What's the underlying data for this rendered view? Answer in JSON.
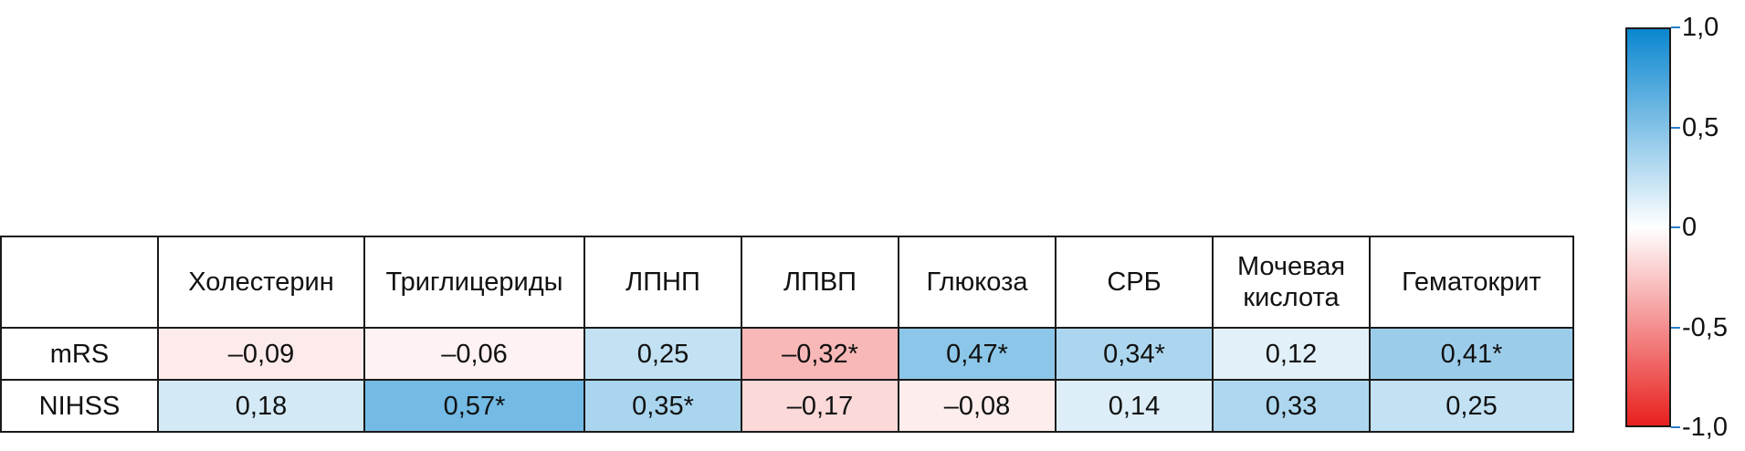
{
  "chart_data": {
    "type": "heatmap",
    "columns": [
      "Холестерин",
      "Триглицериды",
      "ЛПНП",
      "ЛПВП",
      "Глюкоза",
      "СРБ",
      "Мочевая\nкислота",
      "Гематокрит"
    ],
    "rows": [
      {
        "label": "mRS",
        "values": [
          -0.09,
          -0.06,
          0.25,
          -0.32,
          0.47,
          0.34,
          0.12,
          0.41
        ],
        "labels": [
          "–0,09",
          "–0,06",
          "0,25",
          "–0,32*",
          "0,47*",
          "0,34*",
          "0,12",
          "0,41*"
        ]
      },
      {
        "label": "NIHSS",
        "values": [
          0.18,
          0.57,
          0.35,
          -0.17,
          -0.08,
          0.14,
          0.33,
          0.25
        ],
        "labels": [
          "0,18",
          "0,57*",
          "0,35*",
          "–0,17",
          "–0,08",
          "0,14",
          "0,33",
          "0,25"
        ]
      }
    ],
    "colorbar": {
      "min": -1.0,
      "max": 1.0,
      "ticks": [
        1.0,
        0.5,
        0,
        -0.5,
        -1.0
      ],
      "tick_labels": [
        "1,0",
        "0,5",
        "0",
        "-0,5",
        "-1,0"
      ],
      "colors": {
        "negative": "#e8201e",
        "zero": "#ffffff",
        "positive": "#0a86cf"
      }
    }
  }
}
